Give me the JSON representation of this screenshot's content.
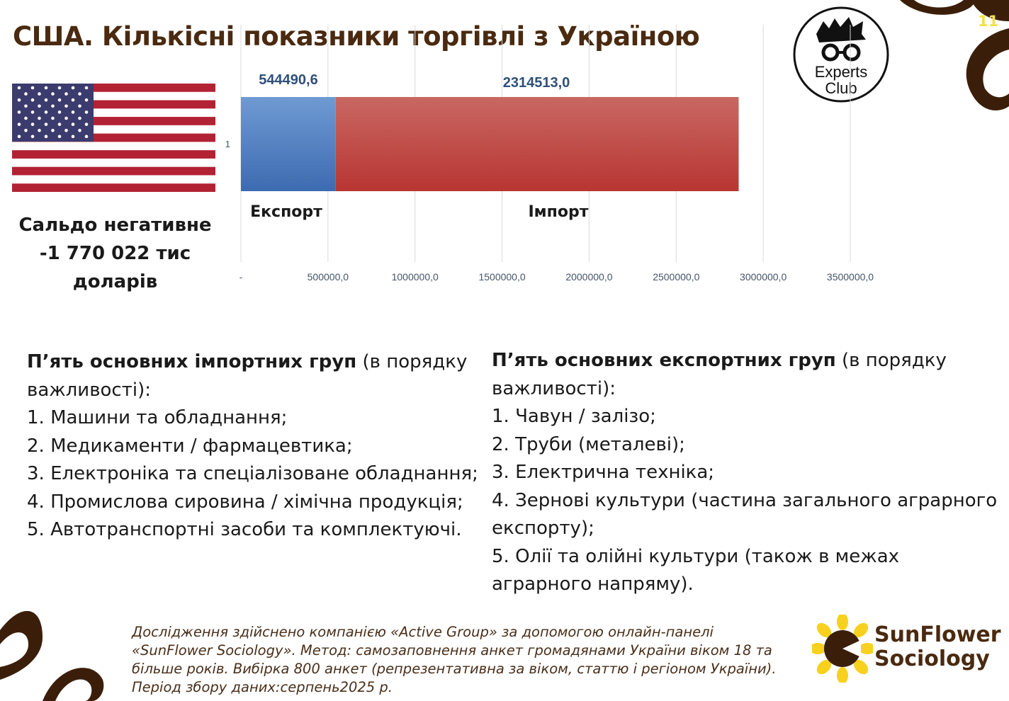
{
  "title": "США. Кількісні показники торгівлі з Україною",
  "page_number": "11",
  "logo": {
    "name": "Experts Club",
    "line1": "Experts",
    "line2": "Club"
  },
  "balance": {
    "line1": "Сальдо негативне",
    "line2": "-1 770 022 тис доларів"
  },
  "chart_data": {
    "type": "bar",
    "orientation": "horizontal",
    "stacked": true,
    "categories": [
      "1"
    ],
    "series": [
      {
        "name": "Експорт",
        "values": [
          544490.6
        ],
        "value_label": "544490,6",
        "color": "#4f81bd"
      },
      {
        "name": "Імпорт",
        "values": [
          2314513.0
        ],
        "value_label": "2314513,0",
        "color": "#c0504d"
      }
    ],
    "xlim": [
      0,
      3500000
    ],
    "xticks": [
      "-",
      "500000,0",
      "1000000,0",
      "1500000,0",
      "2000000,0",
      "2500000,0",
      "3000000,0",
      "3500000,0"
    ],
    "grid": true,
    "legend": "none"
  },
  "imports": {
    "heading_bold": "П’ять основних імпортних груп",
    "heading_rest": " (в порядку важливості):",
    "items": [
      "1. Машини та обладнання;",
      "2. Медикаменти / фармацевтика;",
      "3. Електроніка та спеціалізоване обладнання;",
      "4. Промислова сировина / хімічна продукція;",
      "5. Автотранспортні засоби та комплектуючі."
    ]
  },
  "exports": {
    "heading_bold": "П’ять основних експортних груп",
    "heading_rest": " (в порядку важливості):",
    "items": [
      "1. Чавун / залізо;",
      "2. Труби (металеві);",
      "3. Електрична техніка;",
      "4. Зернові культури (частина загального аграрного експорту);",
      "5. Олії та олійні культури (також в межах аграрного напряму)."
    ]
  },
  "footer": "Дослідження здійснено компанією «Active Group» за допомогою онлайн-панелі «SunFlower Sociology». Метод: самозаповнення анкет громадянами України віком 18 та більше років. Вибірка 800 анкет (репрезентативна за віком, статтю і регіоном України). Період збору даних:серпень2025 р.",
  "brand": {
    "line1": "SunFlower",
    "line2": "Sociology"
  },
  "colors": {
    "title": "#4a2a10",
    "brown": "#3b1e0a",
    "sunflower_yellow": "#f7d11e",
    "page_number": "#f4e04d"
  }
}
